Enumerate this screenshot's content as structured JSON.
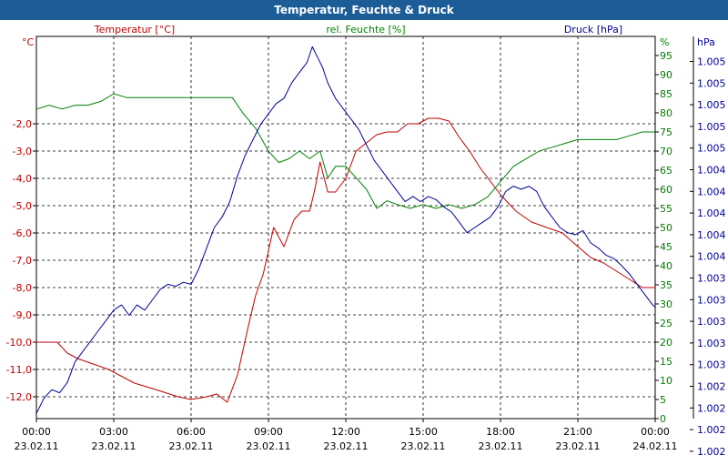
{
  "window": {
    "title": "Temperatur, Feuchte & Druck"
  },
  "chart_data": {
    "type": "line",
    "title": "Temperatur, Feuchte & Druck",
    "colors": {
      "temperature": "#c00000",
      "humidity": "#008000",
      "pressure": "#000099"
    },
    "x_ticks": [
      {
        "time": "00:00",
        "date": "23.02.11"
      },
      {
        "time": "03:00",
        "date": "23.02.11"
      },
      {
        "time": "06:00",
        "date": "23.02.11"
      },
      {
        "time": "09:00",
        "date": "23.02.11"
      },
      {
        "time": "12:00",
        "date": "23.02.11"
      },
      {
        "time": "15:00",
        "date": "23.02.11"
      },
      {
        "time": "18:00",
        "date": "23.02.11"
      },
      {
        "time": "21:00",
        "date": "23.02.11"
      },
      {
        "time": "00:00",
        "date": "24.02.11"
      }
    ],
    "x_range_hours": [
      0,
      24
    ],
    "axes": {
      "temperature": {
        "label": "Temperatur [°C]",
        "unit": "°C",
        "range": [
          -12.8,
          1.2
        ],
        "ticks": [
          "-2,0",
          "-3,0",
          "-4,0",
          "-5,0",
          "-6,0",
          "-7,0",
          "-8,0",
          "-9,0",
          "-10,0",
          "-11,0",
          "-12,0"
        ]
      },
      "humidity": {
        "label": "rel. Feuchte [%]",
        "unit": "%",
        "range": [
          0,
          100
        ],
        "ticks": [
          "95",
          "90",
          "85",
          "80",
          "75",
          "70",
          "65",
          "60",
          "55",
          "50",
          "45",
          "40",
          "35",
          "30",
          "25",
          "20",
          "15",
          "10",
          "5",
          "0"
        ]
      },
      "pressure": {
        "label": "Druck [hPa]",
        "unit": "hPa",
        "range": [
          1001.9,
          1005.6
        ],
        "ticks": [
          "1.005",
          "1.005",
          "1.005",
          "1.005",
          "1.005",
          "1.004",
          "1.004",
          "1.004",
          "1.004",
          "1.004",
          "1.003",
          "1.003",
          "1.003",
          "1.003",
          "1.003",
          "1.002",
          "1.002",
          "1.002",
          "1.002"
        ]
      }
    },
    "series": [
      {
        "name": "Temperatur",
        "axis": "temperature",
        "x": [
          0,
          0.8,
          1.2,
          1.6,
          2.2,
          2.8,
          3.2,
          3.8,
          4.5,
          5.5,
          6.0,
          6.6,
          7.0,
          7.4,
          7.8,
          8.2,
          8.5,
          8.8,
          9.2,
          9.6,
          10.0,
          10.3,
          10.6,
          10.8,
          11.0,
          11.3,
          11.6,
          12.0,
          12.4,
          12.8,
          13.2,
          13.6,
          14.0,
          14.4,
          14.8,
          15.2,
          15.6,
          16.0,
          16.4,
          16.8,
          17.2,
          17.6,
          18.0,
          18.6,
          19.2,
          19.8,
          20.4,
          21.0,
          21.5,
          22.0,
          22.5,
          23.0,
          23.5,
          24.0
        ],
        "values": [
          -10.0,
          -10.0,
          -10.4,
          -10.6,
          -10.8,
          -11.0,
          -11.2,
          -11.5,
          -11.7,
          -12.0,
          -12.1,
          -12.0,
          -11.9,
          -12.2,
          -11.2,
          -9.5,
          -8.3,
          -7.5,
          -5.8,
          -6.5,
          -5.5,
          -5.2,
          -5.2,
          -4.4,
          -3.4,
          -4.5,
          -4.5,
          -4.0,
          -3.0,
          -2.7,
          -2.4,
          -2.3,
          -2.3,
          -2.0,
          -2.0,
          -1.8,
          -1.8,
          -1.9,
          -2.5,
          -3.0,
          -3.6,
          -4.1,
          -4.6,
          -5.2,
          -5.6,
          -5.8,
          -6.0,
          -6.5,
          -6.9,
          -7.1,
          -7.4,
          -7.7,
          -8.0,
          -8.0
        ]
      },
      {
        "name": "rel. Feuchte",
        "axis": "humidity",
        "x": [
          0,
          0.5,
          1.0,
          1.5,
          2.0,
          2.5,
          3.0,
          3.5,
          4.0,
          5.0,
          6.0,
          7.0,
          7.6,
          8.0,
          8.5,
          9.0,
          9.4,
          9.8,
          10.2,
          10.6,
          11.0,
          11.3,
          11.6,
          12.0,
          12.4,
          12.8,
          13.2,
          13.6,
          14.0,
          14.5,
          15.0,
          15.5,
          16.0,
          16.5,
          17.0,
          17.5,
          18.0,
          18.5,
          19.0,
          19.5,
          20.0,
          20.5,
          21.0,
          21.5,
          22.0,
          22.5,
          23.0,
          23.5,
          24.0
        ],
        "values": [
          81,
          82,
          81,
          82,
          82,
          83,
          85,
          84,
          84,
          84,
          84,
          84,
          84,
          80,
          76,
          70,
          67,
          68,
          70,
          68,
          70,
          63,
          66,
          66,
          63,
          60,
          55,
          57,
          56,
          55,
          56,
          55,
          56,
          55,
          56,
          58,
          62,
          66,
          68,
          70,
          71,
          72,
          73,
          73,
          73,
          73,
          74,
          75,
          75
        ]
      },
      {
        "name": "Druck",
        "axis": "pressure",
        "x": [
          0,
          0.3,
          0.6,
          0.9,
          1.2,
          1.5,
          1.8,
          2.1,
          2.4,
          2.7,
          3.0,
          3.3,
          3.6,
          3.9,
          4.2,
          4.5,
          4.8,
          5.1,
          5.4,
          5.7,
          6.0,
          6.3,
          6.6,
          6.9,
          7.2,
          7.5,
          7.8,
          8.1,
          8.4,
          8.7,
          9.0,
          9.3,
          9.6,
          9.9,
          10.2,
          10.5,
          10.7,
          10.9,
          11.1,
          11.3,
          11.6,
          11.9,
          12.2,
          12.5,
          12.8,
          13.1,
          13.4,
          13.7,
          14.0,
          14.3,
          14.6,
          14.9,
          15.2,
          15.5,
          15.8,
          16.1,
          16.4,
          16.7,
          17.0,
          17.3,
          17.6,
          17.9,
          18.2,
          18.5,
          18.8,
          19.1,
          19.4,
          19.7,
          20.0,
          20.3,
          20.6,
          20.9,
          21.2,
          21.5,
          21.8,
          22.1,
          22.4,
          22.7,
          23.0,
          23.3,
          23.6,
          23.9,
          24.0
        ],
        "values": [
          1001.95,
          1002.1,
          1002.18,
          1002.15,
          1002.25,
          1002.45,
          1002.55,
          1002.65,
          1002.75,
          1002.85,
          1002.95,
          1003.0,
          1002.9,
          1003.0,
          1002.95,
          1003.05,
          1003.15,
          1003.2,
          1003.18,
          1003.22,
          1003.2,
          1003.35,
          1003.55,
          1003.75,
          1003.85,
          1004.0,
          1004.25,
          1004.45,
          1004.6,
          1004.75,
          1004.85,
          1004.95,
          1005.0,
          1005.15,
          1005.25,
          1005.35,
          1005.5,
          1005.4,
          1005.3,
          1005.15,
          1005.0,
          1004.9,
          1004.8,
          1004.7,
          1004.55,
          1004.4,
          1004.3,
          1004.2,
          1004.1,
          1004.0,
          1004.05,
          1004.0,
          1004.05,
          1004.02,
          1003.95,
          1003.9,
          1003.8,
          1003.7,
          1003.75,
          1003.8,
          1003.85,
          1003.95,
          1004.1,
          1004.15,
          1004.12,
          1004.15,
          1004.1,
          1003.95,
          1003.85,
          1003.75,
          1003.7,
          1003.68,
          1003.72,
          1003.6,
          1003.55,
          1003.48,
          1003.45,
          1003.38,
          1003.3,
          1003.2,
          1003.1,
          1003.0,
          1002.98
        ]
      }
    ]
  }
}
